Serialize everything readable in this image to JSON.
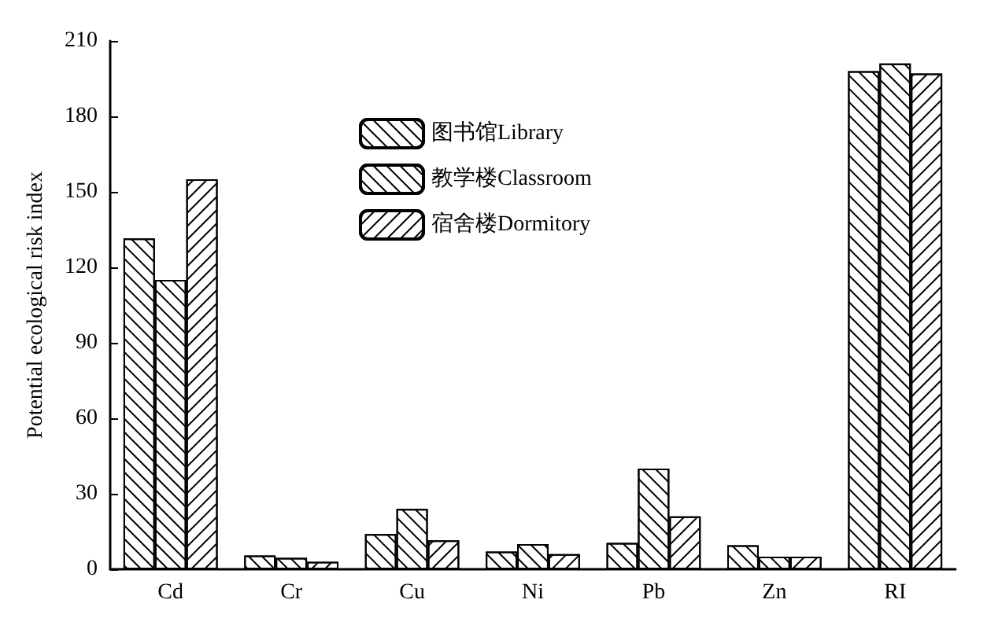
{
  "chart_data": {
    "type": "bar",
    "ylabel": "Potential ecological risk index",
    "categories": [
      "Cd",
      "Cr",
      "Cu",
      "Ni",
      "Pb",
      "Zn",
      "RI"
    ],
    "series": [
      {
        "name": "图书馆Library",
        "color": "#ffffff",
        "values": [
          131.5,
          5.5,
          14,
          7,
          10.5,
          9.5,
          198
        ]
      },
      {
        "name": "教学楼Classroom",
        "color": "#ffffff",
        "values": [
          115,
          4.5,
          24,
          10,
          40,
          5,
          201
        ]
      },
      {
        "name": "宿舍楼Dormitory",
        "color": "#ffffff",
        "values": [
          155,
          3,
          11.5,
          6,
          21,
          5,
          197
        ]
      }
    ],
    "ylim": [
      0,
      210
    ],
    "yticks": [
      0,
      30,
      60,
      90,
      120,
      150,
      180,
      210
    ],
    "grid": false,
    "legend": "top"
  }
}
